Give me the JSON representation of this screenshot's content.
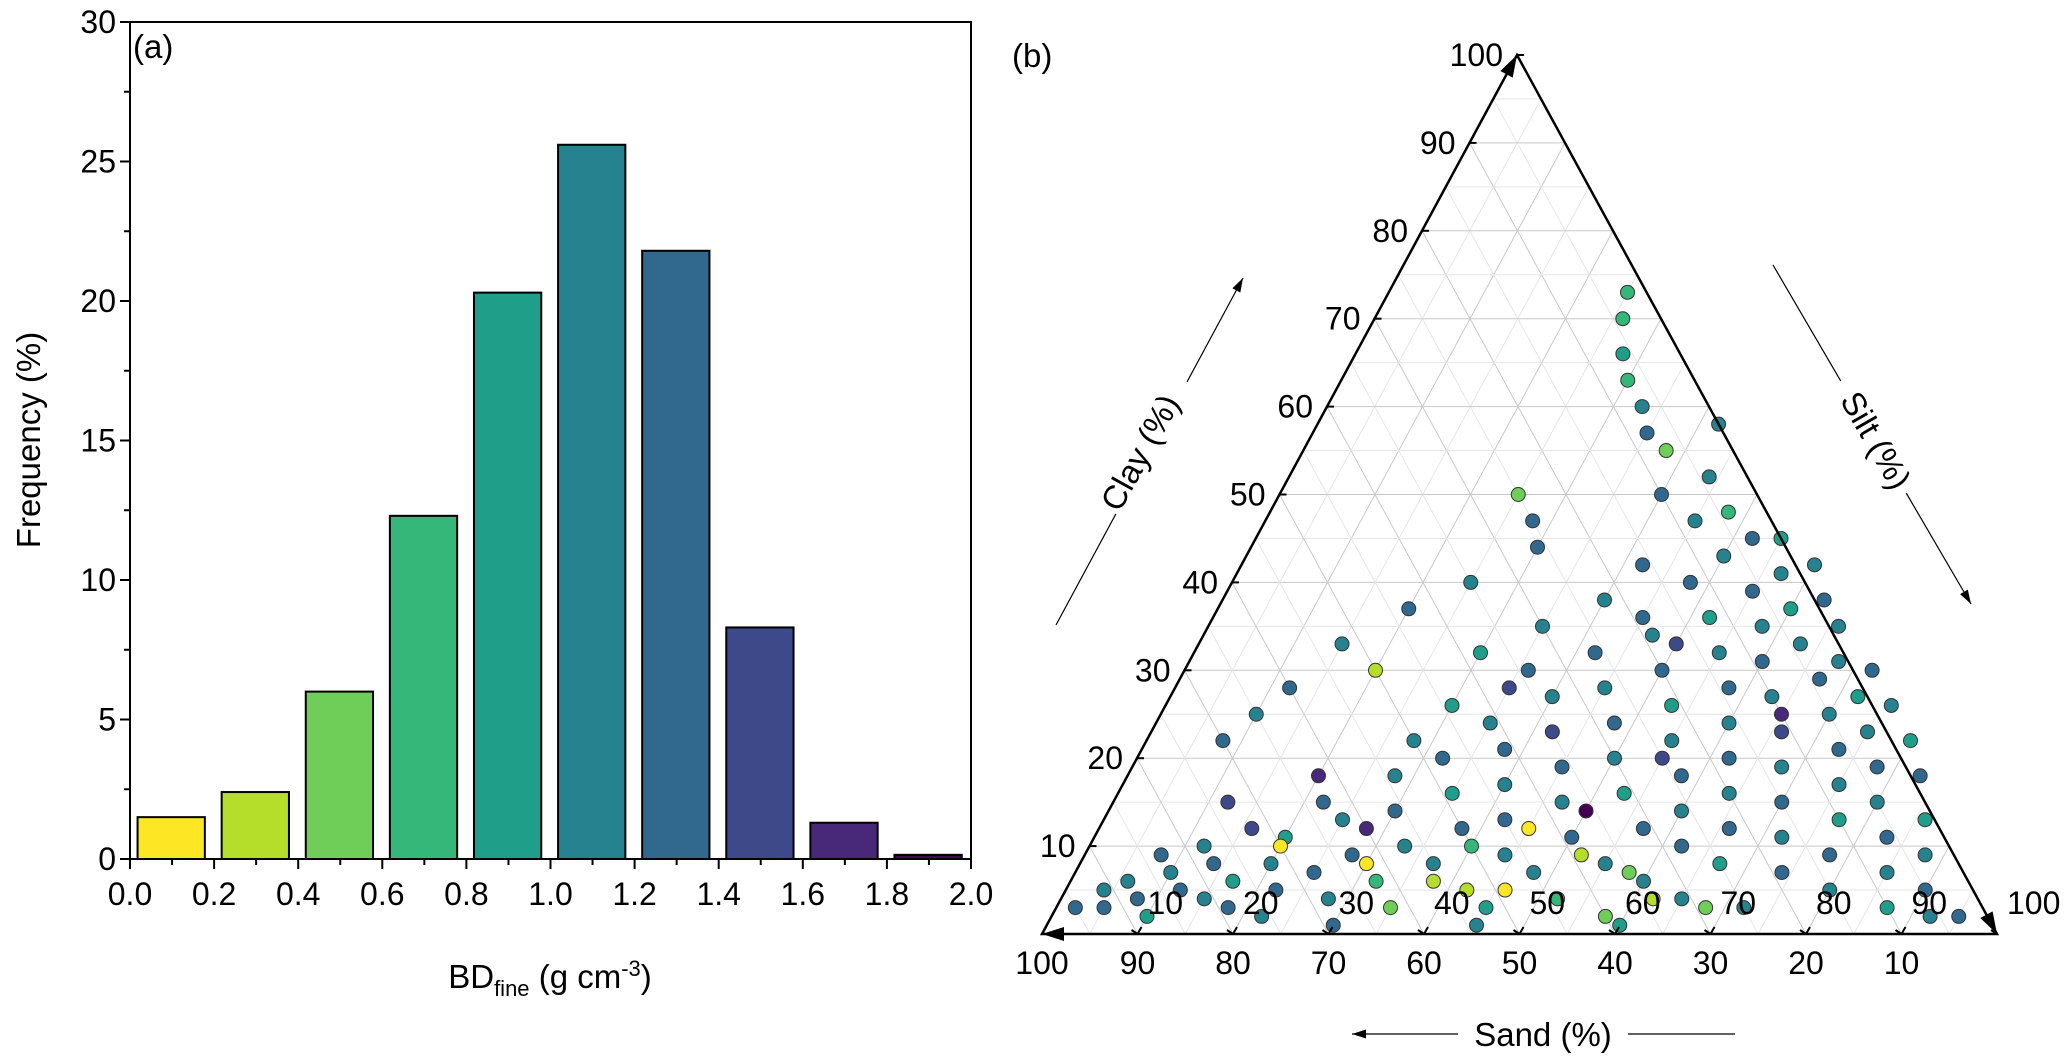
{
  "palette": [
    "#fde725",
    "#b5de2b",
    "#6ece58",
    "#35b779",
    "#1f9e89",
    "#26828e",
    "#31688e",
    "#3e4989",
    "#482878",
    "#440154"
  ],
  "chart_data": [
    {
      "type": "bar",
      "panel_label": "(a)",
      "xlabel_main": "BD",
      "xlabel_sub": "fine",
      "xlabel_unit": " (g cm",
      "xlabel_sup": "-3",
      "xlabel_close": ")",
      "ylabel": "Frequency (%)",
      "xlim": [
        0,
        2.0
      ],
      "ylim": [
        0,
        30
      ],
      "xticks": [
        "0.0",
        "0.2",
        "0.4",
        "0.6",
        "0.8",
        "1.0",
        "1.2",
        "1.4",
        "1.6",
        "1.8",
        "2.0"
      ],
      "yticks": [
        "0",
        "5",
        "10",
        "15",
        "20",
        "25",
        "30"
      ],
      "bins": [
        [
          0.0,
          0.2
        ],
        [
          0.2,
          0.4
        ],
        [
          0.4,
          0.6
        ],
        [
          0.6,
          0.8
        ],
        [
          0.8,
          1.0
        ],
        [
          1.0,
          1.2
        ],
        [
          1.2,
          1.4
        ],
        [
          1.4,
          1.6
        ],
        [
          1.6,
          1.8
        ],
        [
          1.8,
          2.0
        ]
      ],
      "values": [
        1.5,
        2.4,
        6.0,
        12.3,
        20.3,
        25.6,
        21.8,
        8.3,
        1.3,
        0.15
      ],
      "colors": [
        "#fde725",
        "#b5de2b",
        "#6ece58",
        "#35b779",
        "#1f9e89",
        "#26828e",
        "#31688e",
        "#3e4989",
        "#482878",
        "#440154"
      ]
    },
    {
      "type": "scatter",
      "subtype": "ternary",
      "panel_label": "(b)",
      "axes": {
        "clay": "Clay (%)",
        "silt": "Silt (%)",
        "sand": "Sand (%)"
      },
      "clay_ticks": [
        "10",
        "20",
        "30",
        "40",
        "50",
        "60",
        "70",
        "80",
        "90",
        "100"
      ],
      "silt_ticks": [
        "10",
        "20",
        "30",
        "40",
        "50",
        "60",
        "70",
        "80",
        "90",
        "100"
      ],
      "sand_ticks": [
        "100",
        "90",
        "80",
        "70",
        "60",
        "50",
        "40",
        "30",
        "20",
        "10"
      ],
      "grid": true,
      "point_fields": [
        "clay",
        "silt",
        "color_index"
      ],
      "points": [
        [
          3,
          2,
          6
        ],
        [
          3,
          5,
          6
        ],
        [
          5,
          4,
          5
        ],
        [
          4,
          8,
          6
        ],
        [
          6,
          6,
          5
        ],
        [
          2,
          10,
          4
        ],
        [
          5,
          12,
          6
        ],
        [
          7,
          10,
          5
        ],
        [
          8,
          14,
          6
        ],
        [
          4,
          15,
          5
        ],
        [
          6,
          17,
          4
        ],
        [
          9,
          8,
          6
        ],
        [
          3,
          18,
          6
        ],
        [
          10,
          12,
          5
        ],
        [
          2,
          22,
          5
        ],
        [
          5,
          22,
          6
        ],
        [
          8,
          20,
          5
        ],
        [
          12,
          16,
          7
        ],
        [
          11,
          20,
          4
        ],
        [
          7,
          25,
          6
        ],
        [
          4,
          28,
          5
        ],
        [
          9,
          28,
          6
        ],
        [
          13,
          25,
          5
        ],
        [
          15,
          22,
          6
        ],
        [
          6,
          32,
          3
        ],
        [
          10,
          33,
          5
        ],
        [
          14,
          30,
          6
        ],
        [
          18,
          28,
          5
        ],
        [
          3,
          35,
          2
        ],
        [
          8,
          37,
          5
        ],
        [
          12,
          38,
          6
        ],
        [
          16,
          35,
          4
        ],
        [
          20,
          32,
          6
        ],
        [
          22,
          28,
          5
        ],
        [
          5,
          42,
          1
        ],
        [
          9,
          44,
          5
        ],
        [
          13,
          42,
          6
        ],
        [
          17,
          40,
          5
        ],
        [
          21,
          38,
          6
        ],
        [
          24,
          35,
          5
        ],
        [
          26,
          30,
          4
        ],
        [
          3,
          45,
          4
        ],
        [
          7,
          48,
          5
        ],
        [
          11,
          50,
          6
        ],
        [
          15,
          47,
          5
        ],
        [
          19,
          45,
          6
        ],
        [
          23,
          42,
          7
        ],
        [
          27,
          40,
          5
        ],
        [
          30,
          36,
          6
        ],
        [
          4,
          52,
          3
        ],
        [
          8,
          55,
          5
        ],
        [
          12,
          57,
          6
        ],
        [
          16,
          53,
          4
        ],
        [
          20,
          50,
          5
        ],
        [
          24,
          48,
          6
        ],
        [
          28,
          45,
          5
        ],
        [
          32,
          42,
          6
        ],
        [
          2,
          58,
          2
        ],
        [
          6,
          60,
          5
        ],
        [
          10,
          62,
          6
        ],
        [
          14,
          60,
          5
        ],
        [
          18,
          58,
          6
        ],
        [
          22,
          55,
          5
        ],
        [
          26,
          53,
          4
        ],
        [
          30,
          50,
          6
        ],
        [
          34,
          47,
          5
        ],
        [
          4,
          65,
          5
        ],
        [
          8,
          67,
          4
        ],
        [
          12,
          66,
          6
        ],
        [
          16,
          64,
          5
        ],
        [
          20,
          62,
          6
        ],
        [
          24,
          60,
          5
        ],
        [
          28,
          58,
          6
        ],
        [
          32,
          55,
          5
        ],
        [
          36,
          52,
          4
        ],
        [
          40,
          48,
          6
        ],
        [
          3,
          72,
          5
        ],
        [
          7,
          74,
          6
        ],
        [
          11,
          72,
          5
        ],
        [
          15,
          70,
          6
        ],
        [
          19,
          68,
          5
        ],
        [
          23,
          66,
          7
        ],
        [
          27,
          63,
          5
        ],
        [
          31,
          60,
          6
        ],
        [
          35,
          58,
          5
        ],
        [
          39,
          55,
          6
        ],
        [
          43,
          50,
          5
        ],
        [
          5,
          80,
          5
        ],
        [
          9,
          78,
          6
        ],
        [
          13,
          77,
          4
        ],
        [
          17,
          75,
          5
        ],
        [
          21,
          73,
          6
        ],
        [
          25,
          70,
          5
        ],
        [
          29,
          67,
          6
        ],
        [
          33,
          63,
          5
        ],
        [
          37,
          60,
          4
        ],
        [
          41,
          57,
          5
        ],
        [
          45,
          52,
          6
        ],
        [
          3,
          87,
          4
        ],
        [
          7,
          85,
          5
        ],
        [
          11,
          83,
          6
        ],
        [
          15,
          80,
          5
        ],
        [
          19,
          78,
          6
        ],
        [
          23,
          75,
          5
        ],
        [
          27,
          72,
          4
        ],
        [
          31,
          68,
          5
        ],
        [
          2,
          92,
          5
        ],
        [
          5,
          90,
          6
        ],
        [
          9,
          88,
          5
        ],
        [
          13,
          86,
          4
        ],
        [
          47,
          45,
          5
        ],
        [
          50,
          40,
          6
        ],
        [
          48,
          48,
          3
        ],
        [
          52,
          44,
          5
        ],
        [
          55,
          38,
          2
        ],
        [
          57,
          35,
          6
        ],
        [
          60,
          33,
          5
        ],
        [
          63,
          30,
          3
        ],
        [
          66,
          28,
          4
        ],
        [
          70,
          26,
          3
        ],
        [
          73,
          25,
          3
        ],
        [
          58,
          42,
          5
        ],
        [
          45,
          55,
          4
        ],
        [
          42,
          60,
          5
        ],
        [
          38,
          63,
          6
        ],
        [
          35,
          66,
          5
        ],
        [
          30,
          72,
          6
        ],
        [
          26,
          76,
          5
        ],
        [
          22,
          80,
          4
        ],
        [
          18,
          83,
          6
        ],
        [
          44,
          30,
          6
        ],
        [
          40,
          25,
          5
        ],
        [
          37,
          20,
          6
        ],
        [
          50,
          25,
          2
        ],
        [
          33,
          15,
          5
        ],
        [
          28,
          12,
          6
        ],
        [
          25,
          10,
          5
        ],
        [
          22,
          8,
          6
        ],
        [
          30,
          20,
          1
        ],
        [
          47,
          28,
          6
        ],
        [
          10,
          20,
          0
        ],
        [
          8,
          30,
          0
        ],
        [
          6,
          38,
          1
        ],
        [
          5,
          46,
          0
        ],
        [
          9,
          52,
          1
        ],
        [
          7,
          58,
          2
        ],
        [
          12,
          45,
          0
        ],
        [
          4,
          62,
          1
        ],
        [
          3,
          68,
          2
        ],
        [
          10,
          40,
          3
        ],
        [
          14,
          50,
          9
        ],
        [
          18,
          20,
          8
        ],
        [
          12,
          28,
          8
        ],
        [
          20,
          55,
          7
        ],
        [
          25,
          65,
          8
        ],
        [
          15,
          12,
          7
        ],
        [
          33,
          50,
          7
        ],
        [
          28,
          35,
          7
        ],
        [
          2,
          95,
          6
        ],
        [
          1,
          60,
          4
        ],
        [
          1,
          45,
          5
        ],
        [
          1,
          30,
          6
        ],
        [
          38,
          40,
          5
        ],
        [
          42,
          42,
          6
        ],
        [
          35,
          35,
          5
        ],
        [
          32,
          30,
          4
        ],
        [
          36,
          45,
          6
        ]
      ]
    }
  ]
}
